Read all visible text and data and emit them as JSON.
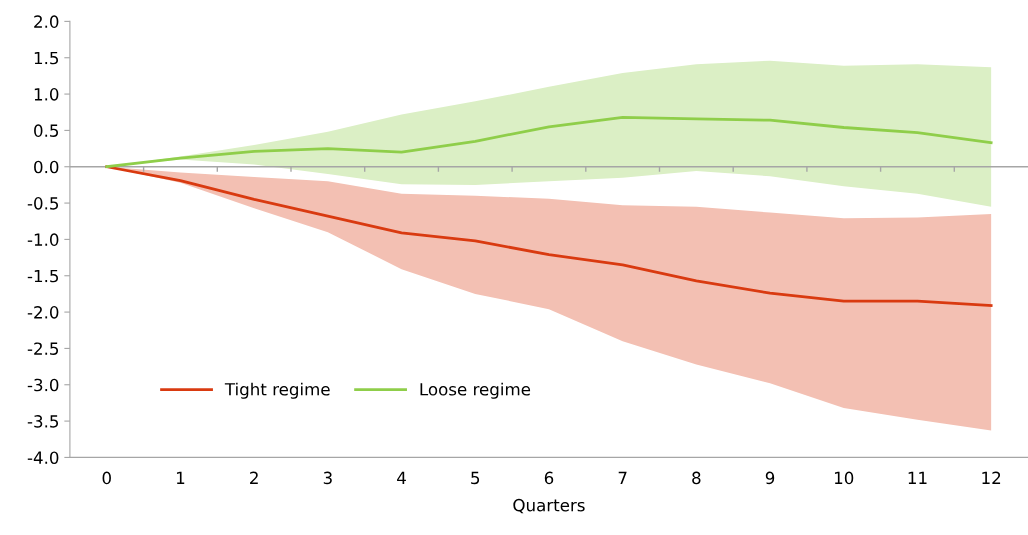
{
  "chart_data": {
    "type": "line",
    "xlabel": "Quarters",
    "categories": [
      "0",
      "1",
      "2",
      "3",
      "4",
      "5",
      "6",
      "7",
      "8",
      "9",
      "10",
      "11",
      "12"
    ],
    "series": [
      {
        "name": "Tight regime",
        "color": "#d93a10",
        "values": [
          0,
          -0.19,
          -0.45,
          -0.68,
          -0.91,
          -1.02,
          -1.21,
          -1.35,
          -1.57,
          -1.74,
          -1.85,
          -1.85,
          -1.91
        ],
        "lower": [
          0,
          -0.22,
          -0.57,
          -0.9,
          -1.41,
          -1.75,
          -1.96,
          -2.4,
          -2.72,
          -2.98,
          -3.32,
          -3.48,
          -3.63
        ],
        "upper": [
          0,
          -0.08,
          -0.14,
          -0.2,
          -0.37,
          -0.4,
          -0.44,
          -0.53,
          -0.55,
          -0.63,
          -0.71,
          -0.7,
          -0.65
        ]
      },
      {
        "name": "Loose regime",
        "color": "#8fce4a",
        "values": [
          0,
          0.12,
          0.21,
          0.25,
          0.2,
          0.35,
          0.55,
          0.68,
          0.66,
          0.64,
          0.54,
          0.47,
          0.33
        ],
        "lower": [
          0,
          0.1,
          0.03,
          -0.1,
          -0.24,
          -0.25,
          -0.2,
          -0.15,
          -0.06,
          -0.13,
          -0.27,
          -0.37,
          -0.55
        ],
        "upper": [
          0,
          0.14,
          0.3,
          0.48,
          0.72,
          0.9,
          1.1,
          1.29,
          1.41,
          1.46,
          1.39,
          1.41,
          1.37
        ]
      }
    ],
    "ylim": [
      -4,
      2
    ],
    "yticks": [
      {
        "value": 2,
        "label": "2.0"
      },
      {
        "value": 1.5,
        "label": "1.5"
      },
      {
        "value": 1,
        "label": "1.0"
      },
      {
        "value": 0.5,
        "label": "0.5"
      },
      {
        "value": 0,
        "label": "0.0"
      },
      {
        "value": -0.5,
        "label": "-0.5"
      },
      {
        "value": -1,
        "label": "-1.0"
      },
      {
        "value": -1.5,
        "label": "-1.5"
      },
      {
        "value": -2,
        "label": "-2.0"
      },
      {
        "value": -2.5,
        "label": "-2.5"
      },
      {
        "value": -3,
        "label": "-3.0"
      },
      {
        "value": -3.5,
        "label": "-3.5"
      },
      {
        "value": -4,
        "label": "-4.0"
      }
    ],
    "ref_lines": [
      {
        "axis": "y",
        "value": 0,
        "color": "#a6a6a6"
      }
    ],
    "grid": false,
    "legend": "bottom left",
    "marker": "none",
    "line_style": "solid"
  }
}
